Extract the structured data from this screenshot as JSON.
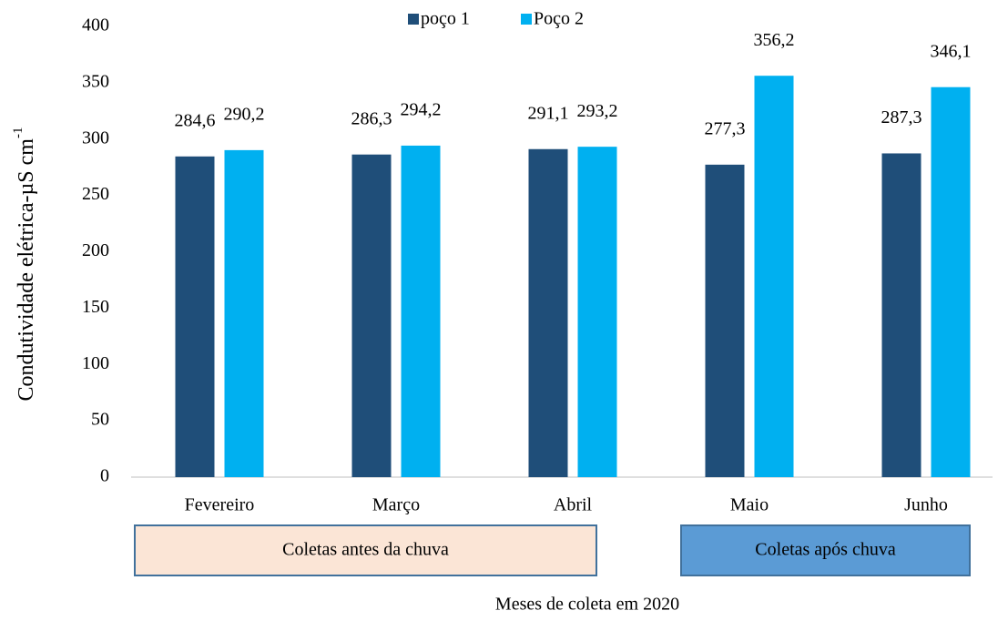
{
  "chart_data": {
    "type": "bar",
    "categories": [
      "Fevereiro",
      "Março",
      "Abril",
      "Maio",
      "Junho"
    ],
    "series": [
      {
        "name": "poço 1",
        "color": "#1f4e79",
        "values": [
          284.6,
          286.3,
          291.1,
          277.3,
          287.3
        ],
        "value_labels": [
          "284,6",
          "286,3",
          "291,1",
          "277,3",
          "287,3"
        ]
      },
      {
        "name": "Poço 2",
        "color": "#00b0f0",
        "values": [
          290.2,
          294.2,
          293.2,
          356.2,
          346.1
        ],
        "value_labels": [
          "290,2",
          "294,2",
          "293,2",
          "356,2",
          "346,1"
        ]
      }
    ],
    "ylim": [
      0,
      400
    ],
    "yticks": [
      0,
      50,
      100,
      150,
      200,
      250,
      300,
      350,
      400
    ],
    "y_label": {
      "text": "Condutividade elétrica-µS cm",
      "superscript": "-1"
    },
    "x_label": "Meses de coleta em 2020",
    "legend": "top",
    "annotations": [
      {
        "text": "Coletas antes da chuva",
        "color": "#fbe5d6"
      },
      {
        "text": "Coletas após chuva",
        "color": "#5b9bd5"
      }
    ]
  }
}
